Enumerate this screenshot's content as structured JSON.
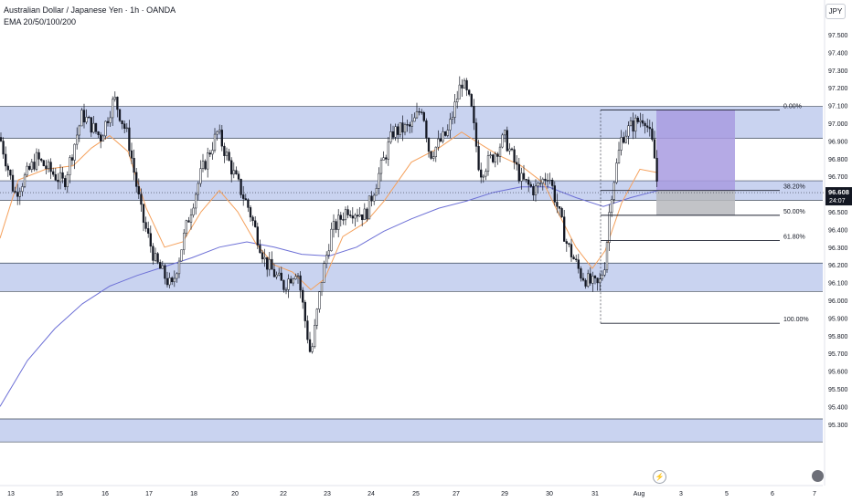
{
  "header": {
    "title": "Australian Dollar / Japanese Yen · 1h · OANDA",
    "indicator": "EMA 20/50/100/200"
  },
  "currency_badge": "JPY",
  "price_tag": {
    "value": "96.608",
    "countdown": "24:07"
  },
  "colors": {
    "zone_fill": "#c9d3f0",
    "zone_border": "#3c4758",
    "ema_orange": "#f5a15c",
    "ema_blue": "#6d70d6",
    "long_target_fill": "#a89be0",
    "long_stop_fill": "#b7b8bd",
    "candle": "#131722",
    "fib_line": "#1e2230"
  },
  "icons": {
    "replay": "lightning-bolt-icon",
    "logo": "tradingview-logo-icon"
  },
  "chart_data": {
    "type": "candlestick",
    "title": "Australian Dollar / Japanese Yen · 1h · OANDA",
    "ylim": [
      95.25,
      97.62
    ],
    "y_ticks": [
      "97.500",
      "97.400",
      "97.300",
      "97.200",
      "97.100",
      "97.000",
      "96.900",
      "96.800",
      "96.700",
      "96.600",
      "96.500",
      "96.400",
      "96.300",
      "96.200",
      "96.100",
      "96.000",
      "95.900",
      "95.800",
      "95.700",
      "95.600",
      "95.500",
      "95.400",
      "95.300"
    ],
    "x_ticks": [
      "13",
      "15",
      "16",
      "17",
      "18",
      "20",
      "22",
      "23",
      "24",
      "25",
      "27",
      "29",
      "30",
      "31",
      "Aug",
      "3",
      "5",
      "6",
      "7"
    ],
    "current_price": 96.608,
    "close_path": [
      [
        0,
        96.92
      ],
      [
        16,
        96.6
      ],
      [
        40,
        96.8
      ],
      [
        70,
        96.66
      ],
      [
        90,
        97.05
      ],
      [
        110,
        96.92
      ],
      [
        125,
        97.14
      ],
      [
        140,
        96.92
      ],
      [
        155,
        96.48
      ],
      [
        170,
        96.22
      ],
      [
        188,
        96.07
      ],
      [
        205,
        96.44
      ],
      [
        220,
        96.72
      ],
      [
        238,
        96.95
      ],
      [
        255,
        96.72
      ],
      [
        272,
        96.52
      ],
      [
        290,
        96.22
      ],
      [
        310,
        96.08
      ],
      [
        325,
        96.18
      ],
      [
        340,
        95.68
      ],
      [
        352,
        96.12
      ],
      [
        362,
        96.38
      ],
      [
        380,
        96.52
      ],
      [
        400,
        96.48
      ],
      [
        415,
        96.72
      ],
      [
        430,
        96.95
      ],
      [
        450,
        96.98
      ],
      [
        462,
        97.1
      ],
      [
        470,
        96.82
      ],
      [
        490,
        96.95
      ],
      [
        505,
        97.24
      ],
      [
        515,
        97.1
      ],
      [
        525,
        96.72
      ],
      [
        540,
        96.82
      ],
      [
        552,
        96.92
      ],
      [
        570,
        96.68
      ],
      [
        585,
        96.62
      ],
      [
        600,
        96.72
      ],
      [
        610,
        96.52
      ],
      [
        620,
        96.32
      ],
      [
        635,
        96.15
      ],
      [
        645,
        96.1
      ],
      [
        655,
        96.08
      ],
      [
        662,
        96.22
      ],
      [
        668,
        96.58
      ],
      [
        680,
        96.92
      ],
      [
        690,
        96.98
      ],
      [
        705,
        97.04
      ],
      [
        715,
        96.85
      ],
      [
        720,
        96.608
      ]
    ],
    "ema_fast": [
      [
        0,
        96.35
      ],
      [
        20,
        96.68
      ],
      [
        50,
        96.74
      ],
      [
        80,
        96.76
      ],
      [
        100,
        96.86
      ],
      [
        120,
        96.93
      ],
      [
        140,
        96.84
      ],
      [
        160,
        96.52
      ],
      [
        180,
        96.3
      ],
      [
        200,
        96.33
      ],
      [
        220,
        96.5
      ],
      [
        240,
        96.62
      ],
      [
        260,
        96.5
      ],
      [
        280,
        96.32
      ],
      [
        300,
        96.2
      ],
      [
        320,
        96.16
      ],
      [
        340,
        96.06
      ],
      [
        355,
        96.12
      ],
      [
        375,
        96.36
      ],
      [
        400,
        96.44
      ],
      [
        420,
        96.56
      ],
      [
        450,
        96.78
      ],
      [
        480,
        96.86
      ],
      [
        505,
        96.95
      ],
      [
        520,
        96.9
      ],
      [
        545,
        96.82
      ],
      [
        570,
        96.76
      ],
      [
        595,
        96.66
      ],
      [
        612,
        96.48
      ],
      [
        630,
        96.3
      ],
      [
        648,
        96.18
      ],
      [
        662,
        96.28
      ],
      [
        680,
        96.55
      ],
      [
        700,
        96.74
      ],
      [
        720,
        96.72
      ]
    ],
    "ema_slow": [
      [
        0,
        95.4
      ],
      [
        30,
        95.66
      ],
      [
        60,
        95.84
      ],
      [
        90,
        95.98
      ],
      [
        120,
        96.08
      ],
      [
        150,
        96.14
      ],
      [
        180,
        96.19
      ],
      [
        210,
        96.24
      ],
      [
        240,
        96.3
      ],
      [
        270,
        96.33
      ],
      [
        300,
        96.3
      ],
      [
        330,
        96.26
      ],
      [
        360,
        96.25
      ],
      [
        390,
        96.3
      ],
      [
        420,
        96.39
      ],
      [
        450,
        96.46
      ],
      [
        480,
        96.52
      ],
      [
        510,
        96.56
      ],
      [
        540,
        96.61
      ],
      [
        570,
        96.64
      ],
      [
        600,
        96.64
      ],
      [
        630,
        96.58
      ],
      [
        660,
        96.53
      ],
      [
        690,
        96.58
      ],
      [
        720,
        96.62
      ]
    ],
    "zones": [
      [
        96.915,
        97.095
      ],
      [
        96.565,
        96.675
      ],
      [
        96.05,
        96.21
      ],
      [
        95.2,
        95.33
      ]
    ],
    "fibonacci": [
      {
        "label": "0.00%",
        "price": 97.075
      },
      {
        "label": "38.20%",
        "price": 96.62
      },
      {
        "label": "50.00%",
        "price": 96.48
      },
      {
        "label": "61.80%",
        "price": 96.338
      },
      {
        "label": "100.00%",
        "price": 95.87
      }
    ],
    "long_position": {
      "entry": 96.62,
      "target": 97.075,
      "stop": 96.48
    }
  }
}
